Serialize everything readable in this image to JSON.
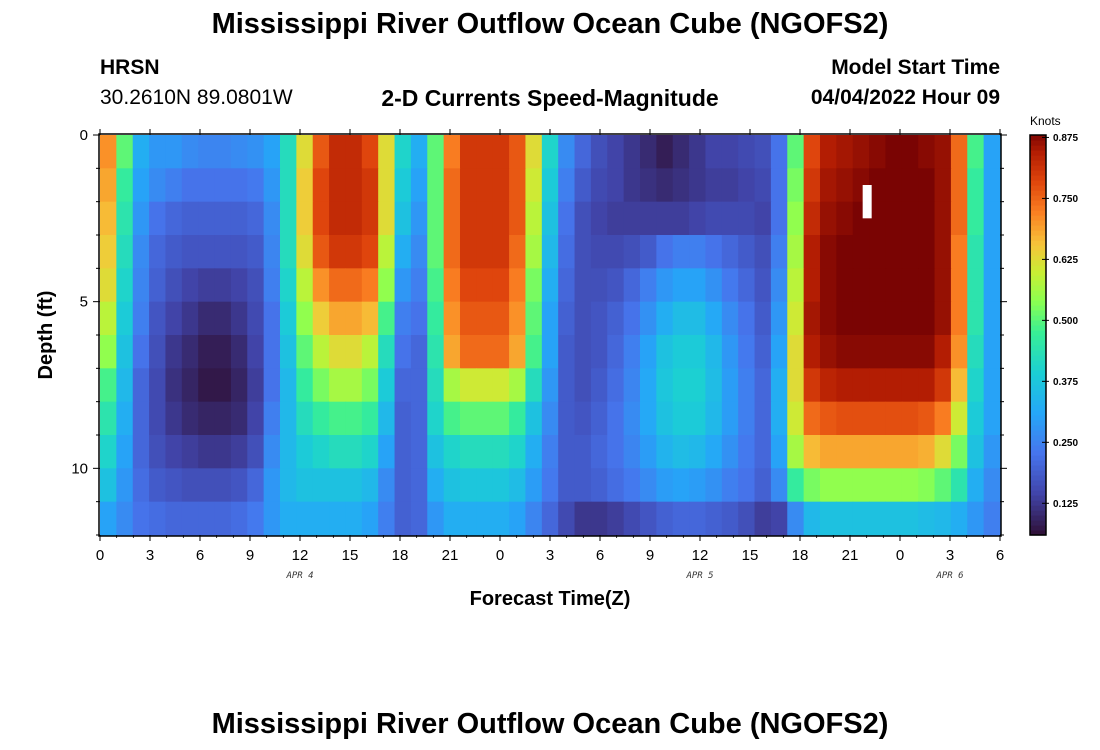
{
  "chart_data": {
    "type": "heatmap",
    "title": "Mississippi River Outflow Ocean Cube (NGOFS2)",
    "subtitle": "2-D Currents Speed-Magnitude",
    "station": "HRSN",
    "location": "30.2610N  89.0801W",
    "model_start_label": "Model Start Time",
    "model_start_value": "04/04/2022 Hour 09",
    "xlabel": "Forecast Time(Z)",
    "ylabel": "Depth (ft)",
    "x_tick_labels": [
      "0",
      "3",
      "6",
      "9",
      "12",
      "15",
      "18",
      "21",
      "0",
      "3",
      "6",
      "9",
      "12",
      "15",
      "18",
      "21",
      "0",
      "3",
      "6"
    ],
    "date_labels": [
      {
        "text": "APR 4",
        "hour": 12
      },
      {
        "text": "APR 5",
        "hour": 36
      },
      {
        "text": "APR 6",
        "hour": 51
      }
    ],
    "y_ticks": [
      0,
      5,
      10
    ],
    "ylim": [
      0,
      12
    ],
    "xlim": [
      0,
      54
    ],
    "colorbar": {
      "label": "Knots",
      "range": [
        0.06,
        0.88
      ],
      "ticks": [
        "0.125",
        "0.250",
        "0.375",
        "0.500",
        "0.625",
        "0.750",
        "0.875"
      ]
    },
    "column_hours": [
      0,
      1,
      2,
      3,
      4,
      5,
      6,
      7,
      8,
      9,
      10,
      11,
      12,
      13,
      14,
      15,
      16,
      17,
      18,
      19,
      20,
      21,
      22,
      23,
      24,
      25,
      26,
      27,
      28,
      29,
      30,
      31,
      32,
      33,
      34,
      35,
      36,
      37,
      38,
      39,
      40,
      41,
      42,
      43,
      44,
      45,
      46,
      47,
      48,
      49,
      50,
      51,
      52,
      53,
      54
    ],
    "row_depths": [
      0.5,
      1.5,
      2.5,
      3.5,
      4.5,
      5.5,
      6.5,
      7.5,
      8.5,
      9.5,
      10.5,
      11.5
    ],
    "speed_values_knots": [
      [
        0.7,
        0.5,
        0.32,
        0.28,
        0.28,
        0.26,
        0.25,
        0.25,
        0.26,
        0.27,
        0.3,
        0.42,
        0.62,
        0.76,
        0.82,
        0.82,
        0.78,
        0.62,
        0.4,
        0.32,
        0.5,
        0.72,
        0.8,
        0.8,
        0.8,
        0.76,
        0.62,
        0.4,
        0.26,
        0.2,
        0.16,
        0.14,
        0.12,
        0.1,
        0.08,
        0.1,
        0.12,
        0.14,
        0.14,
        0.15,
        0.16,
        0.22,
        0.5,
        0.78,
        0.84,
        0.85,
        0.86,
        0.87,
        0.88,
        0.88,
        0.87,
        0.86,
        0.74,
        0.48,
        0.3
      ],
      [
        0.68,
        0.46,
        0.3,
        0.26,
        0.24,
        0.22,
        0.22,
        0.22,
        0.22,
        0.23,
        0.28,
        0.42,
        0.64,
        0.78,
        0.82,
        0.82,
        0.8,
        0.62,
        0.38,
        0.3,
        0.5,
        0.74,
        0.8,
        0.8,
        0.8,
        0.76,
        0.6,
        0.38,
        0.24,
        0.18,
        0.15,
        0.14,
        0.12,
        0.11,
        0.1,
        0.11,
        0.12,
        0.13,
        0.13,
        0.14,
        0.15,
        0.22,
        0.52,
        0.8,
        0.85,
        0.86,
        0.87,
        0.88,
        0.88,
        0.88,
        0.88,
        0.86,
        0.74,
        0.46,
        0.3
      ],
      [
        0.66,
        0.44,
        0.28,
        0.22,
        0.2,
        0.19,
        0.19,
        0.19,
        0.19,
        0.2,
        0.26,
        0.42,
        0.64,
        0.78,
        0.82,
        0.82,
        0.8,
        0.62,
        0.36,
        0.28,
        0.5,
        0.74,
        0.8,
        0.8,
        0.8,
        0.76,
        0.58,
        0.36,
        0.22,
        0.16,
        0.14,
        0.13,
        0.13,
        0.13,
        0.13,
        0.13,
        0.14,
        0.15,
        0.15,
        0.15,
        0.14,
        0.22,
        0.54,
        0.82,
        0.86,
        0.87,
        0.88,
        0.88,
        0.88,
        0.88,
        0.88,
        0.86,
        0.74,
        0.46,
        0.3
      ],
      [
        0.64,
        0.42,
        0.26,
        0.2,
        0.18,
        0.17,
        0.17,
        0.17,
        0.17,
        0.18,
        0.25,
        0.42,
        0.62,
        0.76,
        0.8,
        0.8,
        0.78,
        0.58,
        0.32,
        0.26,
        0.5,
        0.74,
        0.8,
        0.8,
        0.8,
        0.74,
        0.56,
        0.34,
        0.21,
        0.16,
        0.15,
        0.15,
        0.16,
        0.18,
        0.22,
        0.24,
        0.24,
        0.22,
        0.2,
        0.18,
        0.16,
        0.24,
        0.56,
        0.84,
        0.87,
        0.88,
        0.88,
        0.88,
        0.88,
        0.88,
        0.88,
        0.86,
        0.72,
        0.44,
        0.3
      ],
      [
        0.62,
        0.4,
        0.25,
        0.19,
        0.16,
        0.14,
        0.13,
        0.13,
        0.14,
        0.16,
        0.24,
        0.4,
        0.58,
        0.7,
        0.74,
        0.74,
        0.72,
        0.54,
        0.28,
        0.24,
        0.48,
        0.72,
        0.78,
        0.78,
        0.78,
        0.72,
        0.52,
        0.32,
        0.2,
        0.16,
        0.16,
        0.17,
        0.2,
        0.24,
        0.28,
        0.3,
        0.3,
        0.27,
        0.23,
        0.2,
        0.17,
        0.26,
        0.58,
        0.84,
        0.87,
        0.88,
        0.88,
        0.88,
        0.88,
        0.88,
        0.88,
        0.86,
        0.72,
        0.44,
        0.3
      ],
      [
        0.58,
        0.38,
        0.24,
        0.17,
        0.14,
        0.12,
        0.1,
        0.1,
        0.12,
        0.15,
        0.22,
        0.38,
        0.54,
        0.64,
        0.68,
        0.68,
        0.66,
        0.48,
        0.24,
        0.22,
        0.46,
        0.7,
        0.76,
        0.76,
        0.76,
        0.7,
        0.5,
        0.3,
        0.19,
        0.16,
        0.17,
        0.19,
        0.22,
        0.27,
        0.32,
        0.35,
        0.35,
        0.31,
        0.26,
        0.22,
        0.18,
        0.28,
        0.6,
        0.85,
        0.87,
        0.88,
        0.88,
        0.88,
        0.88,
        0.88,
        0.88,
        0.86,
        0.72,
        0.44,
        0.3
      ],
      [
        0.54,
        0.36,
        0.22,
        0.16,
        0.12,
        0.1,
        0.08,
        0.08,
        0.1,
        0.14,
        0.22,
        0.36,
        0.5,
        0.58,
        0.62,
        0.62,
        0.58,
        0.42,
        0.22,
        0.2,
        0.44,
        0.68,
        0.74,
        0.74,
        0.74,
        0.68,
        0.48,
        0.3,
        0.18,
        0.16,
        0.17,
        0.2,
        0.24,
        0.3,
        0.36,
        0.38,
        0.38,
        0.34,
        0.28,
        0.23,
        0.19,
        0.3,
        0.62,
        0.84,
        0.86,
        0.87,
        0.87,
        0.87,
        0.87,
        0.87,
        0.87,
        0.84,
        0.7,
        0.42,
        0.3
      ],
      [
        0.48,
        0.34,
        0.2,
        0.15,
        0.11,
        0.09,
        0.07,
        0.07,
        0.09,
        0.13,
        0.22,
        0.34,
        0.46,
        0.52,
        0.56,
        0.56,
        0.52,
        0.38,
        0.2,
        0.2,
        0.42,
        0.56,
        0.6,
        0.6,
        0.6,
        0.56,
        0.42,
        0.28,
        0.18,
        0.16,
        0.18,
        0.21,
        0.25,
        0.31,
        0.37,
        0.39,
        0.39,
        0.35,
        0.29,
        0.24,
        0.2,
        0.32,
        0.62,
        0.8,
        0.83,
        0.84,
        0.84,
        0.84,
        0.84,
        0.84,
        0.84,
        0.8,
        0.66,
        0.4,
        0.3
      ],
      [
        0.44,
        0.32,
        0.2,
        0.15,
        0.12,
        0.1,
        0.09,
        0.09,
        0.1,
        0.14,
        0.24,
        0.34,
        0.42,
        0.46,
        0.48,
        0.48,
        0.46,
        0.34,
        0.19,
        0.2,
        0.4,
        0.48,
        0.5,
        0.5,
        0.5,
        0.46,
        0.36,
        0.26,
        0.18,
        0.17,
        0.19,
        0.22,
        0.26,
        0.31,
        0.36,
        0.38,
        0.38,
        0.34,
        0.29,
        0.24,
        0.2,
        0.32,
        0.6,
        0.74,
        0.76,
        0.77,
        0.77,
        0.77,
        0.77,
        0.77,
        0.76,
        0.72,
        0.6,
        0.38,
        0.3
      ],
      [
        0.4,
        0.3,
        0.2,
        0.16,
        0.14,
        0.13,
        0.12,
        0.12,
        0.13,
        0.16,
        0.26,
        0.34,
        0.38,
        0.4,
        0.42,
        0.42,
        0.4,
        0.3,
        0.19,
        0.2,
        0.36,
        0.4,
        0.42,
        0.42,
        0.42,
        0.4,
        0.32,
        0.24,
        0.18,
        0.18,
        0.2,
        0.22,
        0.25,
        0.29,
        0.33,
        0.35,
        0.34,
        0.31,
        0.27,
        0.23,
        0.2,
        0.3,
        0.56,
        0.66,
        0.68,
        0.68,
        0.68,
        0.68,
        0.68,
        0.68,
        0.67,
        0.62,
        0.52,
        0.36,
        0.28
      ],
      [
        0.36,
        0.28,
        0.21,
        0.18,
        0.17,
        0.16,
        0.16,
        0.16,
        0.17,
        0.2,
        0.28,
        0.34,
        0.36,
        0.36,
        0.36,
        0.36,
        0.34,
        0.26,
        0.19,
        0.2,
        0.32,
        0.36,
        0.37,
        0.37,
        0.37,
        0.35,
        0.29,
        0.23,
        0.18,
        0.18,
        0.19,
        0.21,
        0.23,
        0.26,
        0.29,
        0.3,
        0.29,
        0.27,
        0.24,
        0.22,
        0.19,
        0.26,
        0.46,
        0.52,
        0.54,
        0.54,
        0.54,
        0.54,
        0.54,
        0.54,
        0.53,
        0.5,
        0.44,
        0.32,
        0.26
      ],
      [
        0.3,
        0.26,
        0.22,
        0.21,
        0.2,
        0.2,
        0.2,
        0.2,
        0.21,
        0.23,
        0.28,
        0.32,
        0.32,
        0.32,
        0.32,
        0.32,
        0.3,
        0.24,
        0.19,
        0.2,
        0.28,
        0.32,
        0.32,
        0.32,
        0.32,
        0.3,
        0.25,
        0.2,
        0.15,
        0.12,
        0.12,
        0.13,
        0.15,
        0.17,
        0.19,
        0.2,
        0.2,
        0.19,
        0.18,
        0.16,
        0.13,
        0.14,
        0.26,
        0.34,
        0.36,
        0.36,
        0.36,
        0.36,
        0.36,
        0.36,
        0.35,
        0.34,
        0.32,
        0.28,
        0.24
      ]
    ],
    "gap_marker": {
      "hour": 46,
      "depth_top": 1.5,
      "depth_bottom": 2.5
    }
  }
}
